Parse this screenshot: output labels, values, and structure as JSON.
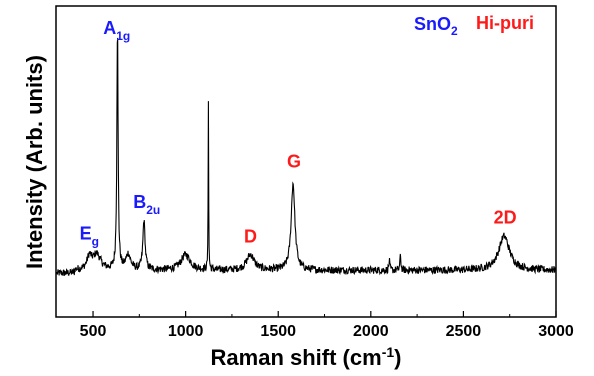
{
  "chart_data": {
    "type": "line",
    "xlabel": "Raman shift (cm",
    "xlabel_sup": "-1",
    "xlabel_end": ")",
    "ylabel": "Intensity (Arb. units)",
    "xlim": [
      300,
      3000
    ],
    "ylim": [
      0,
      100
    ],
    "y_ticks_shown": false,
    "x_ticks": [
      "500",
      "1000",
      "1500",
      "2000",
      "2500",
      "3000"
    ],
    "grid": false,
    "legend": {
      "material": "SnO",
      "material_sub": "2",
      "sample": "Hi-puri",
      "material_color": "#1a1aff",
      "sample_color": "#ff1a1a"
    },
    "line_color": "#000000",
    "baseline": 15,
    "noise": 1.2,
    "peaks": [
      {
        "x": 480,
        "height": 4,
        "width": 15
      },
      {
        "x": 520,
        "height": 5,
        "width": 25
      },
      {
        "x": 632,
        "height": 78,
        "width": 4
      },
      {
        "x": 690,
        "height": 5,
        "width": 15
      },
      {
        "x": 775,
        "height": 16,
        "width": 7
      },
      {
        "x": 1000,
        "height": 5,
        "width": 30
      },
      {
        "x": 1123,
        "height": 55,
        "width": 1.5
      },
      {
        "x": 1350,
        "height": 5,
        "width": 25
      },
      {
        "x": 1580,
        "height": 28,
        "width": 12
      },
      {
        "x": 2160,
        "height": 5,
        "width": 3
      },
      {
        "x": 2100,
        "height": 3,
        "width": 3
      },
      {
        "x": 2720,
        "height": 11,
        "width": 35
      }
    ],
    "annotations": [
      {
        "text": "A",
        "sub": "1g",
        "x": 628,
        "y": 91,
        "color": "#1a1aff"
      },
      {
        "text": "E",
        "sub": "g",
        "x": 480,
        "y": 25,
        "color": "#1a1aff"
      },
      {
        "text": "B",
        "sub": "2u",
        "x": 790,
        "y": 35,
        "color": "#1a1aff"
      },
      {
        "text": "D",
        "sub": "",
        "x": 1350,
        "y": 24,
        "color": "#ff1a1a"
      },
      {
        "text": "G",
        "sub": "",
        "x": 1585,
        "y": 48,
        "color": "#ff1a1a"
      },
      {
        "text": "2D",
        "sub": "",
        "x": 2725,
        "y": 30,
        "color": "#ff1a1a"
      }
    ]
  }
}
